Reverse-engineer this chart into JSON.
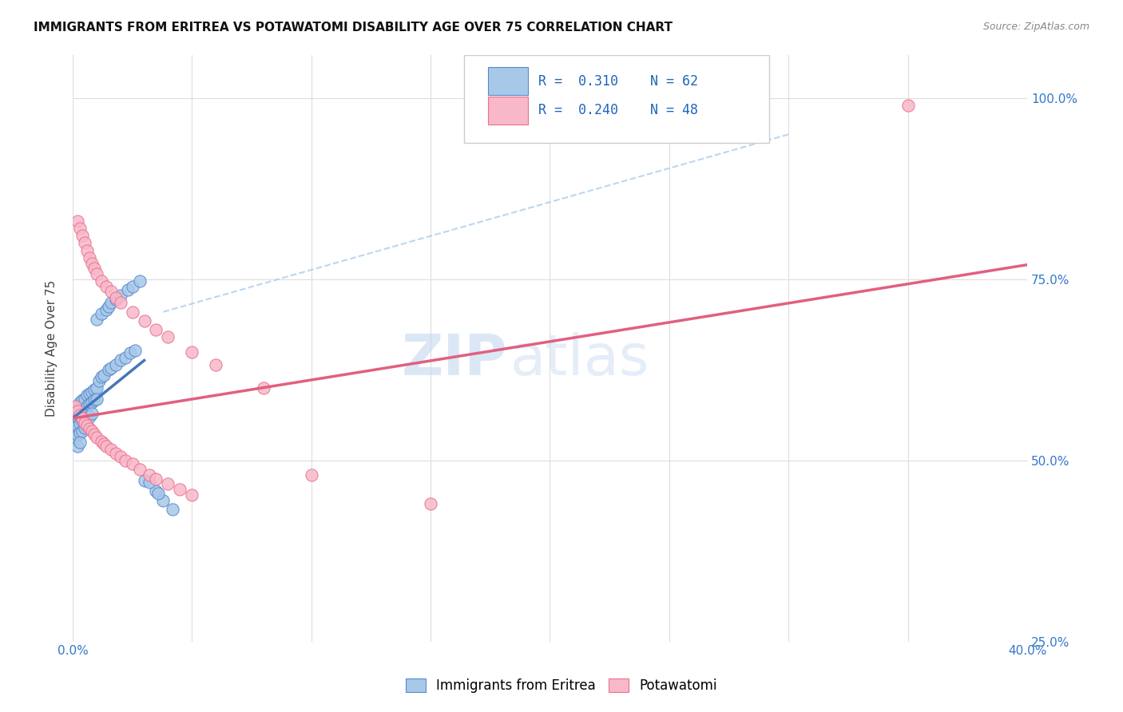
{
  "title": "IMMIGRANTS FROM ERITREA VS POTAWATOMI DISABILITY AGE OVER 75 CORRELATION CHART",
  "source": "Source: ZipAtlas.com",
  "ylabel": "Disability Age Over 75",
  "R1": 0.31,
  "N1": 62,
  "R2": 0.24,
  "N2": 48,
  "color_blue_fill": "#a8c8e8",
  "color_blue_edge": "#5588cc",
  "color_pink_fill": "#f8b8c8",
  "color_pink_edge": "#e87090",
  "color_blue_line": "#4477bb",
  "color_pink_line": "#e06080",
  "color_dash": "#aaccee",
  "legend_label1": "Immigrants from Eritrea",
  "legend_label2": "Potawatomi",
  "watermark_zip": "ZIP",
  "watermark_atlas": "atlas",
  "x_min": 0.0,
  "x_max": 0.4,
  "y_min": 0.38,
  "y_max": 1.06,
  "x_ticks": [
    0.0,
    0.05,
    0.1,
    0.15,
    0.2,
    0.25,
    0.3,
    0.35,
    0.4
  ],
  "x_tick_labels": [
    "0.0%",
    "",
    "",
    "",
    "",
    "",
    "",
    "",
    "40.0%"
  ],
  "y_ticks": [
    0.5,
    0.75,
    1.0
  ],
  "y_tick_labels": [
    "50.0%",
    "75.0%",
    "100.0%"
  ],
  "y_tick_extra": [
    0.25
  ],
  "y_tick_extra_labels": [
    "25.0%"
  ],
  "blue_x": [
    0.001,
    0.001,
    0.001,
    0.001,
    0.002,
    0.002,
    0.002,
    0.002,
    0.002,
    0.003,
    0.003,
    0.003,
    0.003,
    0.003,
    0.004,
    0.004,
    0.004,
    0.004,
    0.005,
    0.005,
    0.005,
    0.005,
    0.006,
    0.006,
    0.006,
    0.006,
    0.007,
    0.007,
    0.007,
    0.008,
    0.008,
    0.008,
    0.009,
    0.009,
    0.01,
    0.01,
    0.011,
    0.012,
    0.013,
    0.015,
    0.016,
    0.018,
    0.02,
    0.022,
    0.024,
    0.026,
    0.03,
    0.035,
    0.038,
    0.042,
    0.01,
    0.012,
    0.014,
    0.015,
    0.016,
    0.018,
    0.02,
    0.023,
    0.025,
    0.028,
    0.032,
    0.036
  ],
  "blue_y": [
    0.57,
    0.555,
    0.545,
    0.53,
    0.575,
    0.56,
    0.548,
    0.535,
    0.52,
    0.58,
    0.565,
    0.55,
    0.538,
    0.525,
    0.583,
    0.568,
    0.555,
    0.54,
    0.585,
    0.57,
    0.558,
    0.545,
    0.59,
    0.575,
    0.562,
    0.548,
    0.592,
    0.578,
    0.56,
    0.595,
    0.58,
    0.565,
    0.598,
    0.583,
    0.6,
    0.585,
    0.61,
    0.615,
    0.618,
    0.625,
    0.628,
    0.632,
    0.638,
    0.642,
    0.648,
    0.652,
    0.472,
    0.458,
    0.445,
    0.432,
    0.695,
    0.702,
    0.708,
    0.712,
    0.718,
    0.722,
    0.728,
    0.735,
    0.74,
    0.748,
    0.47,
    0.455
  ],
  "pink_x": [
    0.001,
    0.002,
    0.003,
    0.004,
    0.005,
    0.006,
    0.007,
    0.008,
    0.009,
    0.01,
    0.012,
    0.013,
    0.014,
    0.016,
    0.018,
    0.02,
    0.022,
    0.025,
    0.028,
    0.032,
    0.035,
    0.04,
    0.045,
    0.05,
    0.002,
    0.003,
    0.004,
    0.005,
    0.006,
    0.007,
    0.008,
    0.009,
    0.01,
    0.012,
    0.014,
    0.016,
    0.018,
    0.02,
    0.025,
    0.03,
    0.035,
    0.04,
    0.05,
    0.06,
    0.08,
    0.1,
    0.15,
    0.35
  ],
  "pink_y": [
    0.575,
    0.568,
    0.562,
    0.558,
    0.552,
    0.548,
    0.544,
    0.54,
    0.536,
    0.532,
    0.526,
    0.523,
    0.52,
    0.515,
    0.51,
    0.505,
    0.5,
    0.495,
    0.488,
    0.48,
    0.474,
    0.468,
    0.46,
    0.452,
    0.83,
    0.82,
    0.81,
    0.8,
    0.79,
    0.78,
    0.772,
    0.765,
    0.758,
    0.748,
    0.74,
    0.733,
    0.725,
    0.718,
    0.705,
    0.692,
    0.68,
    0.67,
    0.65,
    0.632,
    0.6,
    0.48,
    0.44,
    0.99
  ],
  "blue_line_x": [
    0.0,
    0.03
  ],
  "blue_line_y": [
    0.558,
    0.638
  ],
  "pink_line_x": [
    0.0,
    0.4
  ],
  "pink_line_y": [
    0.558,
    0.77
  ],
  "dash_line_x": [
    0.038,
    0.3
  ],
  "dash_line_y": [
    0.705,
    0.95
  ]
}
